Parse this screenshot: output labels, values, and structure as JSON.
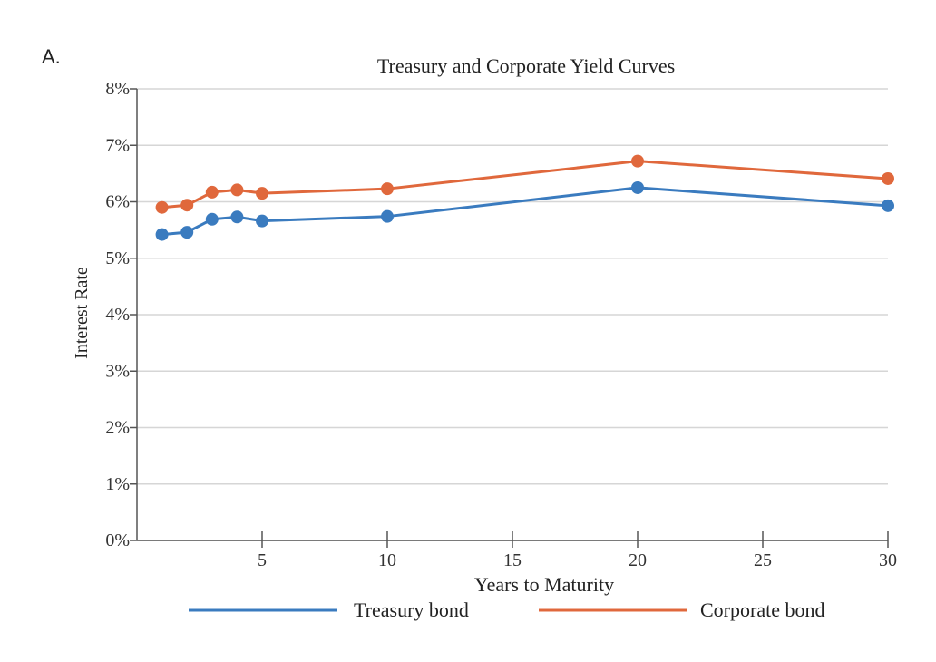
{
  "question_label": "A.",
  "chart_data": {
    "type": "line",
    "title": "Treasury and Corporate Yield Curves",
    "xlabel": "Years to Maturity",
    "ylabel": "Interest Rate",
    "xlim": [
      0,
      30
    ],
    "ylim": [
      0,
      8
    ],
    "x_ticks": [
      5,
      10,
      15,
      20,
      25,
      30
    ],
    "y_ticks": [
      0,
      1,
      2,
      3,
      4,
      5,
      6,
      7,
      8
    ],
    "y_tick_labels": [
      "0%",
      "1%",
      "2%",
      "3%",
      "4%",
      "5%",
      "6%",
      "7%",
      "8%"
    ],
    "grid": "horizontal",
    "legend": "bottom",
    "x": [
      1,
      2,
      3,
      4,
      5,
      10,
      20,
      30
    ],
    "series": [
      {
        "name": "Treasury bond",
        "color": "#3a7bbf",
        "values": [
          5.42,
          5.46,
          5.69,
          5.73,
          5.66,
          5.74,
          6.25,
          5.93
        ]
      },
      {
        "name": "Corporate bond",
        "color": "#e0683c",
        "values": [
          5.9,
          5.94,
          6.17,
          6.21,
          6.15,
          6.23,
          6.72,
          6.41
        ]
      }
    ]
  }
}
